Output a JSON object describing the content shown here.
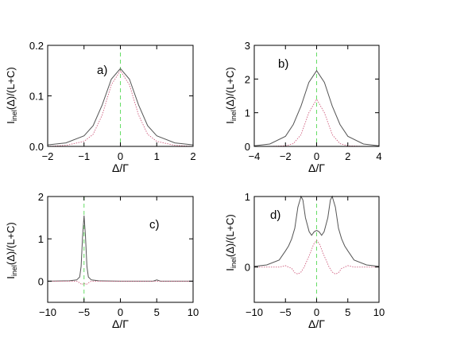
{
  "chart_data": [
    {
      "panel": "a)",
      "type": "line",
      "xlabel": "Δ/Γ",
      "ylabel": "I_inel(Δ)/(L+C)",
      "xlim": [
        -2,
        2
      ],
      "ylim": [
        0,
        0.2
      ],
      "xticks": [
        -2,
        -1,
        0,
        1,
        2
      ],
      "yticks": [
        0.0,
        0.1,
        0.2
      ],
      "xtick_labels": [
        "−2",
        "−1",
        "0",
        "1",
        "2"
      ],
      "ytick_labels": [
        "0.0",
        "0.1",
        "0.2"
      ],
      "vline_x": 0,
      "series": [
        {
          "color": "#555555",
          "x": [
            -2,
            -1.5,
            -1,
            -0.75,
            -0.5,
            -0.25,
            0,
            0.25,
            0.5,
            0.75,
            1,
            1.5,
            2
          ],
          "y": [
            0.003,
            0.007,
            0.021,
            0.041,
            0.082,
            0.133,
            0.154,
            0.133,
            0.082,
            0.041,
            0.021,
            0.007,
            0.003
          ]
        },
        {
          "color": "#d06080",
          "x": [
            -2,
            -1.5,
            -1,
            -0.75,
            -0.5,
            -0.25,
            0,
            0.25,
            0.5,
            0.75,
            1,
            1.5,
            2
          ],
          "y": [
            0.0,
            0.002,
            0.01,
            0.024,
            0.062,
            0.122,
            0.15,
            0.122,
            0.062,
            0.024,
            0.01,
            0.002,
            0.0
          ]
        }
      ]
    },
    {
      "panel": "b)",
      "type": "line",
      "xlabel": "Δ/Γ",
      "ylabel": "I_inel(Δ)/(L+C)",
      "xlim": [
        -4,
        4
      ],
      "ylim": [
        0,
        3
      ],
      "xticks": [
        -4,
        -2,
        0,
        2,
        4
      ],
      "yticks": [
        0,
        1,
        2,
        3
      ],
      "xtick_labels": [
        "−4",
        "−2",
        "0",
        "2",
        "4"
      ],
      "ytick_labels": [
        "0",
        "1",
        "2",
        "3"
      ],
      "vline_x": 0,
      "series": [
        {
          "color": "#555555",
          "x": [
            -4,
            -3,
            -2,
            -1.5,
            -1,
            -0.5,
            0,
            0.5,
            1,
            1.5,
            2,
            3,
            4
          ],
          "y": [
            0.02,
            0.07,
            0.3,
            0.65,
            1.2,
            1.9,
            2.25,
            1.9,
            1.2,
            0.65,
            0.3,
            0.07,
            0.02
          ]
        },
        {
          "color": "#d06080",
          "x": [
            -4,
            -3,
            -2,
            -1.5,
            -1,
            -0.5,
            0,
            0.5,
            1,
            1.5,
            2,
            3,
            4
          ],
          "y": [
            0.0,
            0.0,
            0.02,
            0.08,
            0.35,
            1.0,
            1.4,
            1.0,
            0.35,
            0.08,
            0.02,
            0.0,
            0.0
          ]
        }
      ]
    },
    {
      "panel": "c)",
      "type": "line",
      "xlabel": "Δ/Γ",
      "ylabel": "I_inel(Δ)/(L+C)",
      "xlim": [
        -10,
        10
      ],
      "ylim": [
        -0.5,
        2
      ],
      "xticks": [
        -10,
        -5,
        0,
        5,
        10
      ],
      "yticks": [
        0,
        1,
        2
      ],
      "xtick_labels": [
        "−10",
        "−5",
        "0",
        "5",
        "10"
      ],
      "ytick_labels": [
        "0",
        "1",
        "2"
      ],
      "vline_x": -5,
      "series": [
        {
          "color": "#555555",
          "x": [
            -10,
            -7,
            -6,
            -5.6,
            -5.4,
            -5.2,
            -5,
            -4.8,
            -4.6,
            -4.4,
            -4,
            -3,
            0,
            4.5,
            5,
            5.5,
            10
          ],
          "y": [
            0.0,
            0.01,
            0.03,
            0.1,
            0.35,
            1.05,
            1.55,
            1.05,
            0.35,
            0.1,
            0.03,
            0.01,
            0.0,
            0.0,
            0.03,
            0.0,
            0.0
          ]
        },
        {
          "color": "#d06080",
          "x": [
            -10,
            -6,
            -5.6,
            -5.3,
            -5,
            -4.7,
            -4.4,
            -4,
            0,
            10
          ],
          "y": [
            0.0,
            0.0,
            -0.04,
            -0.08,
            -0.05,
            -0.08,
            -0.04,
            0.0,
            0.0,
            0.0
          ]
        }
      ]
    },
    {
      "panel": "d)",
      "type": "line",
      "xlabel": "Δ/Γ",
      "ylabel": "I_inel(Δ)/(L+C)",
      "xlim": [
        -10,
        10
      ],
      "ylim": [
        -0.5,
        1
      ],
      "xticks": [
        -10,
        -5,
        0,
        5,
        10
      ],
      "yticks": [
        0,
        1
      ],
      "xtick_labels": [
        "−10",
        "−5",
        "0",
        "5",
        "10"
      ],
      "ytick_labels": [
        "0",
        "1"
      ],
      "vline_x": 0,
      "series": [
        {
          "color": "#555555",
          "x": [
            -10,
            -8,
            -6,
            -5,
            -4.5,
            -4,
            -3.5,
            -3,
            -2.5,
            -2.2,
            -1.8,
            -1.2,
            -0.8,
            -0.4,
            0,
            0.4,
            0.8,
            1.2,
            1.8,
            2.2,
            2.5,
            3,
            3.5,
            4,
            4.5,
            5,
            6,
            8,
            10
          ],
          "y": [
            0.01,
            0.03,
            0.1,
            0.23,
            0.3,
            0.4,
            0.55,
            0.85,
            1.0,
            0.95,
            0.7,
            0.5,
            0.45,
            0.5,
            0.52,
            0.5,
            0.45,
            0.5,
            0.7,
            0.95,
            1.0,
            0.85,
            0.55,
            0.4,
            0.3,
            0.23,
            0.1,
            0.03,
            0.01
          ]
        },
        {
          "color": "#d06080",
          "x": [
            -10,
            -8,
            -6,
            -5,
            -4,
            -3.5,
            -3,
            -2.5,
            -2,
            -1.5,
            -1,
            -0.5,
            0,
            0.5,
            1,
            1.5,
            2,
            2.5,
            3,
            3.5,
            4,
            5,
            6,
            8,
            10
          ],
          "y": [
            0.0,
            0.0,
            0.0,
            0.02,
            -0.02,
            -0.08,
            -0.1,
            -0.07,
            0.0,
            0.1,
            0.2,
            0.32,
            0.38,
            0.32,
            0.2,
            0.1,
            0.0,
            -0.07,
            -0.1,
            -0.08,
            -0.02,
            0.02,
            0.0,
            0.0,
            0.0
          ]
        }
      ]
    }
  ]
}
